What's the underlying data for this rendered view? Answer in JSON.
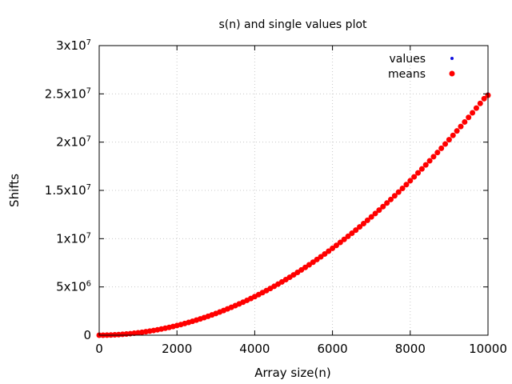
{
  "chart_data": {
    "type": "scatter",
    "title": "s(n) and single values plot",
    "xlabel": "Array size(n)",
    "ylabel": "Shifts",
    "xlim": [
      0,
      10000
    ],
    "ylim": [
      0,
      30000000
    ],
    "x_ticks": [
      {
        "value": 0,
        "label": "0"
      },
      {
        "value": 2000,
        "label": "2000"
      },
      {
        "value": 4000,
        "label": "4000"
      },
      {
        "value": 6000,
        "label": "6000"
      },
      {
        "value": 8000,
        "label": "8000"
      },
      {
        "value": 10000,
        "label": "10000"
      }
    ],
    "y_ticks": [
      {
        "value": 0,
        "mantissa": "0",
        "exponent": ""
      },
      {
        "value": 5000000,
        "mantissa": "5x10",
        "exponent": "6"
      },
      {
        "value": 10000000,
        "mantissa": "1x10",
        "exponent": "7"
      },
      {
        "value": 15000000,
        "mantissa": "1.5x10",
        "exponent": "7"
      },
      {
        "value": 20000000,
        "mantissa": "2x10",
        "exponent": "7"
      },
      {
        "value": 25000000,
        "mantissa": "2.5x10",
        "exponent": "7"
      },
      {
        "value": 30000000,
        "mantissa": "3x10",
        "exponent": "7"
      }
    ],
    "grid": true,
    "legend_position": "top-right",
    "series": [
      {
        "name": "values",
        "color": "#1010e0",
        "marker": "small-dot",
        "x": [
          0,
          100,
          200,
          300,
          400,
          500,
          600,
          700,
          800,
          900,
          1000,
          1100,
          1200,
          1300,
          1400,
          1500,
          1600,
          1700,
          1800,
          1900,
          2000,
          2100,
          2200,
          2300,
          2400,
          2500,
          2600,
          2700,
          2800,
          2900,
          3000,
          3100,
          3200,
          3300,
          3400,
          3500,
          3600,
          3700,
          3800,
          3900,
          4000,
          4100,
          4200,
          4300,
          4400,
          4500,
          4600,
          4700,
          4800,
          4900,
          5000,
          5100,
          5200,
          5300,
          5400,
          5500,
          5600,
          5700,
          5800,
          5900,
          6000,
          6100,
          6200,
          6300,
          6400,
          6500,
          6600,
          6700,
          6800,
          6900,
          7000,
          7100,
          7200,
          7300,
          7400,
          7500,
          7600,
          7700,
          7800,
          7900,
          8000,
          8100,
          8200,
          8300,
          8400,
          8500,
          8600,
          8700,
          8800,
          8900,
          9000,
          9100,
          9200,
          9300,
          9400,
          9500,
          9600,
          9700,
          9800,
          9900,
          10000
        ],
        "y": [
          0,
          2500,
          10000,
          22500,
          40000,
          62500,
          90000,
          122500,
          160000,
          202500,
          250000,
          302500,
          360000,
          422500,
          490000,
          562500,
          640000,
          722500,
          810000,
          902500,
          1000000,
          1102500,
          1210000,
          1322500,
          1440000,
          1562500,
          1690000,
          1822500,
          1960000,
          2102500,
          2250000,
          2402500,
          2560000,
          2722500,
          2890000,
          3062500,
          3240000,
          3422500,
          3610000,
          3802500,
          4000000,
          4202500,
          4410000,
          4622500,
          4840000,
          5062500,
          5290000,
          5522500,
          5760000,
          6002500,
          6250000,
          6502500,
          6760000,
          7022500,
          7290000,
          7562500,
          7840000,
          8122500,
          8410000,
          8702500,
          9000000,
          9302500,
          9610000,
          9922500,
          10240000,
          10562500,
          10890000,
          11222500,
          11560000,
          11902500,
          12250000,
          12602500,
          12960000,
          13322500,
          13690000,
          14062500,
          14440000,
          14822500,
          15210000,
          15602500,
          16000000,
          16402500,
          16810000,
          17222500,
          17640000,
          18062500,
          18490000,
          18922500,
          19360000,
          19802500,
          20250000,
          20702500,
          21160000,
          21622500,
          22090000,
          22562500,
          23040000,
          23522500,
          24010000,
          24502500,
          25000000
        ]
      },
      {
        "name": "means",
        "color": "#ff0000",
        "marker": "dot",
        "x": [
          0,
          100,
          200,
          300,
          400,
          500,
          600,
          700,
          800,
          900,
          1000,
          1100,
          1200,
          1300,
          1400,
          1500,
          1600,
          1700,
          1800,
          1900,
          2000,
          2100,
          2200,
          2300,
          2400,
          2500,
          2600,
          2700,
          2800,
          2900,
          3000,
          3100,
          3200,
          3300,
          3400,
          3500,
          3600,
          3700,
          3800,
          3900,
          4000,
          4100,
          4200,
          4300,
          4400,
          4500,
          4600,
          4700,
          4800,
          4900,
          5000,
          5100,
          5200,
          5300,
          5400,
          5500,
          5600,
          5700,
          5800,
          5900,
          6000,
          6100,
          6200,
          6300,
          6400,
          6500,
          6600,
          6700,
          6800,
          6900,
          7000,
          7100,
          7200,
          7300,
          7400,
          7500,
          7600,
          7700,
          7800,
          7900,
          8000,
          8100,
          8200,
          8300,
          8400,
          8500,
          8600,
          8700,
          8800,
          8900,
          9000,
          9100,
          9200,
          9300,
          9400,
          9500,
          9600,
          9700,
          9800,
          9900,
          10000
        ],
        "y": [
          0,
          2500,
          10000,
          22500,
          40000,
          62500,
          90000,
          122500,
          160000,
          202500,
          250000,
          302500,
          360000,
          422500,
          490000,
          562500,
          640000,
          722500,
          810000,
          902500,
          1000000,
          1102500,
          1210000,
          1322500,
          1440000,
          1562500,
          1690000,
          1822500,
          1960000,
          2102500,
          2250000,
          2402500,
          2560000,
          2722500,
          2890000,
          3062500,
          3240000,
          3422500,
          3610000,
          3802500,
          4000000,
          4202500,
          4410000,
          4622500,
          4840000,
          5062500,
          5290000,
          5522500,
          5760000,
          6002500,
          6250000,
          6502500,
          6760000,
          7022500,
          7290000,
          7562500,
          7840000,
          8122500,
          8410000,
          8702500,
          9000000,
          9302500,
          9610000,
          9922500,
          10240000,
          10562500,
          10890000,
          11222500,
          11560000,
          11902500,
          12250000,
          12602500,
          12960000,
          13322500,
          13690000,
          14062500,
          14440000,
          14822500,
          15210000,
          15602500,
          16000000,
          16402500,
          16810000,
          17222500,
          17640000,
          18062500,
          18490000,
          18922500,
          19360000,
          19802500,
          20250000,
          20702500,
          21160000,
          21622500,
          22090000,
          22562500,
          23040000,
          23522500,
          24010000,
          24502500,
          24850000
        ]
      }
    ]
  }
}
